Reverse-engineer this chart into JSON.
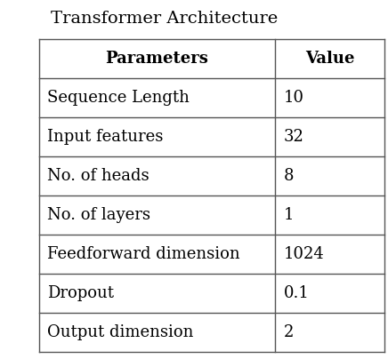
{
  "title": "Transformer Architecture",
  "title_fontsize": 14,
  "col_headers": [
    "Parameters",
    "Value"
  ],
  "rows": [
    [
      "Sequence Length",
      "10"
    ],
    [
      "Input features",
      "32"
    ],
    [
      "No. of heads",
      "8"
    ],
    [
      "No. of layers",
      "1"
    ],
    [
      "Feedforward dimension",
      "1024"
    ],
    [
      "Dropout",
      "0.1"
    ],
    [
      "Output dimension",
      "2"
    ]
  ],
  "header_fontsize": 13,
  "cell_fontsize": 13,
  "background_color": "#ffffff",
  "line_color": "#555555",
  "text_color": "#000000",
  "fig_width": 4.36,
  "fig_height": 4.04,
  "dpi": 100
}
